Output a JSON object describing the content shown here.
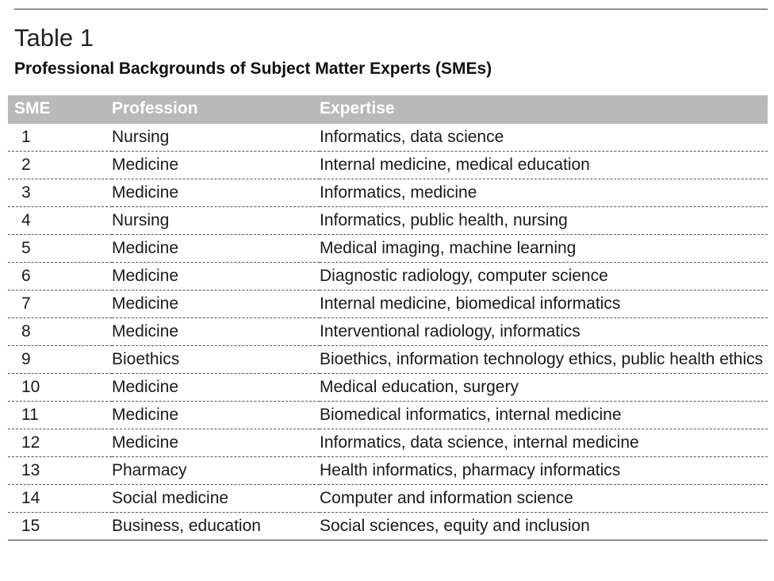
{
  "header": {
    "title": "Table 1",
    "subtitle": "Professional Backgrounds of Subject Matter Experts (SMEs)"
  },
  "table": {
    "columns": [
      "SME",
      "Profession",
      "Expertise"
    ],
    "rows": [
      [
        "1",
        "Nursing",
        "Informatics, data science"
      ],
      [
        "2",
        "Medicine",
        "Internal medicine, medical education"
      ],
      [
        "3",
        "Medicine",
        "Informatics, medicine"
      ],
      [
        "4",
        "Nursing",
        "Informatics, public health, nursing"
      ],
      [
        "5",
        "Medicine",
        "Medical imaging, machine learning"
      ],
      [
        "6",
        "Medicine",
        "Diagnostic radiology, computer science"
      ],
      [
        "7",
        "Medicine",
        "Internal medicine, biomedical informatics"
      ],
      [
        "8",
        "Medicine",
        "Interventional radiology, informatics"
      ],
      [
        "9",
        "Bioethics",
        "Bioethics, information technology ethics, public health ethics"
      ],
      [
        "10",
        "Medicine",
        "Medical education, surgery"
      ],
      [
        "11",
        "Medicine",
        "Biomedical informatics, internal medicine"
      ],
      [
        "12",
        "Medicine",
        "Informatics, data science, internal medicine"
      ],
      [
        "13",
        "Pharmacy",
        "Health informatics, pharmacy informatics"
      ],
      [
        "14",
        "Social medicine",
        "Computer and information science"
      ],
      [
        "15",
        "Business, education",
        "Social sciences, equity and inclusion"
      ]
    ]
  }
}
